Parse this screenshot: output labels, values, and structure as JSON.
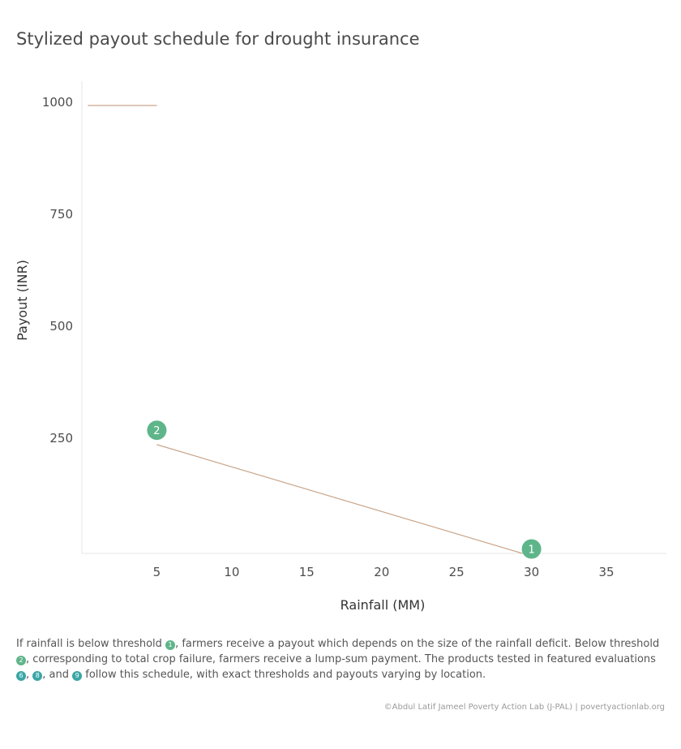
{
  "chart_data": {
    "type": "line",
    "title": "Stylized payout schedule for drought insurance",
    "xlabel": "Rainfall (MM)",
    "ylabel": "Payout (INR)",
    "xlim": [
      0,
      39
    ],
    "ylim": [
      0,
      1000
    ],
    "x_ticks": [
      5,
      10,
      15,
      20,
      25,
      30,
      35
    ],
    "y_ticks": [
      250,
      500,
      750,
      1000
    ],
    "grid": false,
    "series": [
      {
        "segments": [
          [
            [
              0.4,
              1000
            ],
            [
              5,
              1000
            ]
          ],
          [
            [
              5,
              243
            ],
            [
              29.4,
              0
            ]
          ]
        ],
        "color": "#c9a58a"
      }
    ],
    "annotations": [
      {
        "label": "1",
        "x": 30,
        "y": 10,
        "color": "#5fb58a"
      },
      {
        "label": "2",
        "x": 5,
        "y": 275,
        "color": "#5fb58a"
      }
    ]
  },
  "caption": {
    "part1": "If rainfall is below threshold ",
    "dot1": "1",
    "part2": ", farmers receive a payout which depends on the size of the rainfall deficit. Below threshold ",
    "dot2": "2",
    "part3": ", corresponding to total crop failure, farmers receive a lump-sum payment. The products tested in featured evaluations ",
    "dot3": "6",
    "sep1": ", ",
    "dot4": "8",
    "part4": ", and ",
    "dot5": "9",
    "part5": " follow this schedule, with exact thresholds and payouts varying by location."
  },
  "credit": "©Abdul Latif Jameel Poverty Action Lab (J-PAL) | povertyactionlab.org"
}
